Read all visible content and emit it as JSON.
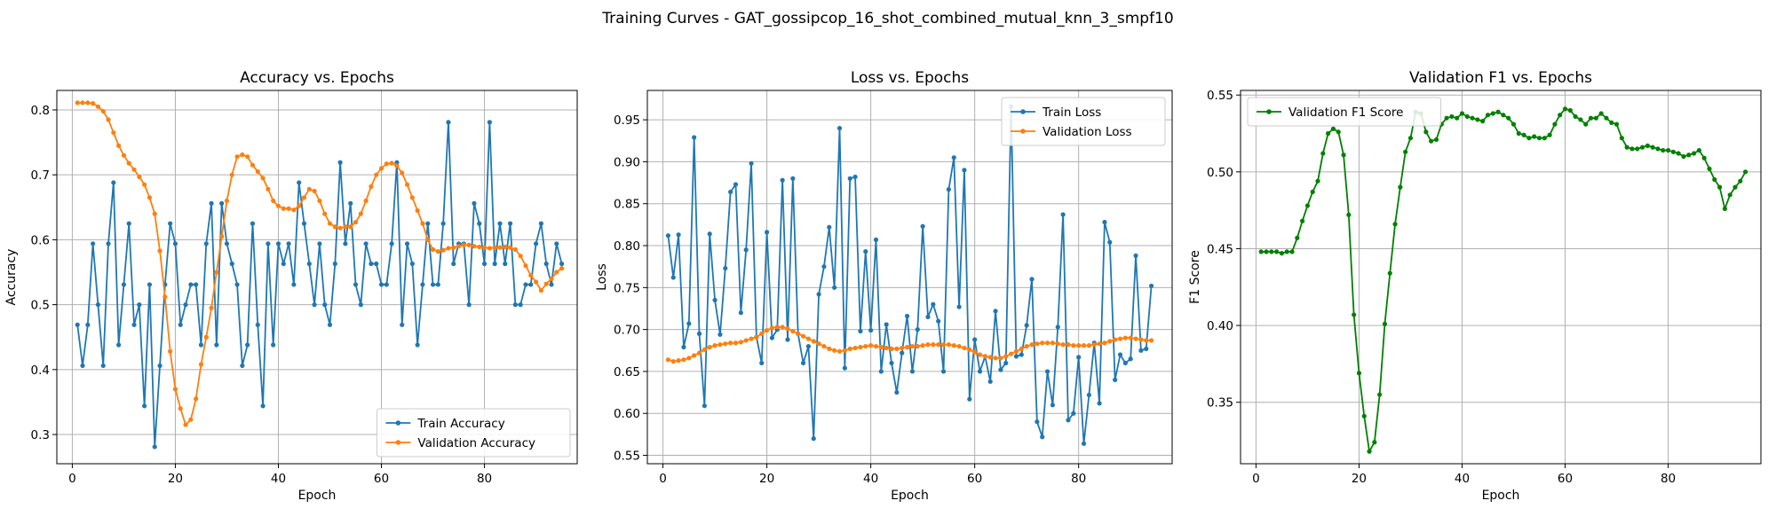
{
  "figure": {
    "title": "Training Curves - GAT_gossipcop_16_shot_combined_mutual_knn_3_smpf10"
  },
  "colors": {
    "train": "#1f77b4",
    "val": "#ff7f0e",
    "f1": "#008000",
    "grid": "#b0b0b0"
  },
  "chart_data": [
    {
      "type": "line",
      "title": "Accuracy vs. Epochs",
      "xlabel": "Epoch",
      "ylabel": "Accuracy",
      "xlim": [
        -3,
        98
      ],
      "ylim": [
        0.255,
        0.83
      ],
      "xticks": [
        0,
        20,
        40,
        60,
        80
      ],
      "yticks": [
        0.3,
        0.4,
        0.5,
        0.6,
        0.7,
        0.8
      ],
      "ytick_decimals": 1,
      "grid": true,
      "legend": "lower-right",
      "series": [
        {
          "name": "Train Accuracy",
          "color": "#1f77b4",
          "values": [
            0.469,
            0.406,
            0.469,
            0.594,
            0.5,
            0.406,
            0.594,
            0.688,
            0.438,
            0.531,
            0.625,
            0.469,
            0.5,
            0.344,
            0.531,
            0.281,
            0.406,
            0.531,
            0.625,
            0.594,
            0.469,
            0.5,
            0.531,
            0.531,
            0.438,
            0.594,
            0.656,
            0.438,
            0.656,
            0.594,
            0.563,
            0.531,
            0.406,
            0.438,
            0.625,
            0.469,
            0.344,
            0.594,
            0.438,
            0.594,
            0.563,
            0.594,
            0.531,
            0.688,
            0.625,
            0.563,
            0.5,
            0.594,
            0.5,
            0.469,
            0.563,
            0.719,
            0.594,
            0.656,
            0.531,
            0.5,
            0.594,
            0.563,
            0.563,
            0.531,
            0.531,
            0.594,
            0.719,
            0.469,
            0.594,
            0.563,
            0.438,
            0.531,
            0.625,
            0.531,
            0.531,
            0.625,
            0.781,
            0.563,
            0.594,
            0.594,
            0.5,
            0.656,
            0.625,
            0.563,
            0.781,
            0.563,
            0.625,
            0.563,
            0.625,
            0.5,
            0.5,
            0.531,
            0.531,
            0.594,
            0.625,
            0.563,
            0.531,
            0.594,
            0.563
          ]
        },
        {
          "name": "Validation Accuracy",
          "color": "#ff7f0e",
          "values": [
            0.811,
            0.811,
            0.811,
            0.81,
            0.805,
            0.798,
            0.785,
            0.765,
            0.745,
            0.73,
            0.718,
            0.708,
            0.697,
            0.685,
            0.665,
            0.64,
            0.583,
            0.512,
            0.428,
            0.37,
            0.34,
            0.315,
            0.323,
            0.355,
            0.408,
            0.45,
            0.495,
            0.55,
            0.605,
            0.66,
            0.7,
            0.728,
            0.731,
            0.728,
            0.715,
            0.705,
            0.695,
            0.678,
            0.66,
            0.652,
            0.648,
            0.648,
            0.646,
            0.652,
            0.665,
            0.678,
            0.675,
            0.66,
            0.64,
            0.625,
            0.62,
            0.618,
            0.62,
            0.62,
            0.627,
            0.64,
            0.66,
            0.682,
            0.7,
            0.71,
            0.717,
            0.718,
            0.714,
            0.703,
            0.685,
            0.665,
            0.645,
            0.625,
            0.6,
            0.585,
            0.582,
            0.584,
            0.587,
            0.588,
            0.59,
            0.592,
            0.592,
            0.59,
            0.589,
            0.588,
            0.587,
            0.588,
            0.588,
            0.589,
            0.588,
            0.585,
            0.575,
            0.56,
            0.545,
            0.535,
            0.522,
            0.532,
            0.54,
            0.55,
            0.556
          ]
        }
      ]
    },
    {
      "type": "line",
      "title": "Loss vs. Epochs",
      "xlabel": "Epoch",
      "ylabel": "Loss",
      "xlim": [
        -3,
        98
      ],
      "ylim": [
        0.54,
        0.985
      ],
      "xticks": [
        0,
        20,
        40,
        60,
        80
      ],
      "yticks": [
        0.55,
        0.6,
        0.65,
        0.7,
        0.75,
        0.8,
        0.85,
        0.9,
        0.95
      ],
      "ytick_decimals": 2,
      "grid": true,
      "legend": "upper-right",
      "series": [
        {
          "name": "Train Loss",
          "color": "#1f77b4",
          "values": [
            0.812,
            0.762,
            0.813,
            0.679,
            0.707,
            0.929,
            0.695,
            0.609,
            0.814,
            0.735,
            0.694,
            0.773,
            0.864,
            0.873,
            0.72,
            0.795,
            0.898,
            0.691,
            0.66,
            0.816,
            0.69,
            0.7,
            0.878,
            0.688,
            0.88,
            0.695,
            0.66,
            0.68,
            0.57,
            0.742,
            0.775,
            0.822,
            0.75,
            0.94,
            0.654,
            0.88,
            0.882,
            0.698,
            0.793,
            0.699,
            0.807,
            0.65,
            0.706,
            0.66,
            0.625,
            0.672,
            0.716,
            0.65,
            0.7,
            0.823,
            0.715,
            0.73,
            0.71,
            0.65,
            0.867,
            0.905,
            0.727,
            0.89,
            0.617,
            0.688,
            0.65,
            0.668,
            0.638,
            0.722,
            0.652,
            0.66,
            0.966,
            0.668,
            0.67,
            0.705,
            0.76,
            0.59,
            0.572,
            0.65,
            0.61,
            0.703,
            0.837,
            0.592,
            0.6,
            0.667,
            0.564,
            0.622,
            0.684,
            0.612,
            0.828,
            0.804,
            0.64,
            0.67,
            0.66,
            0.665,
            0.788,
            0.675,
            0.677,
            0.752
          ]
        },
        {
          "name": "Validation Loss",
          "color": "#ff7f0e",
          "values": [
            0.664,
            0.662,
            0.663,
            0.664,
            0.666,
            0.669,
            0.672,
            0.676,
            0.679,
            0.681,
            0.682,
            0.683,
            0.684,
            0.684,
            0.685,
            0.687,
            0.689,
            0.691,
            0.695,
            0.699,
            0.702,
            0.703,
            0.703,
            0.701,
            0.698,
            0.695,
            0.692,
            0.689,
            0.686,
            0.683,
            0.68,
            0.677,
            0.675,
            0.674,
            0.675,
            0.677,
            0.678,
            0.679,
            0.68,
            0.681,
            0.68,
            0.679,
            0.678,
            0.677,
            0.677,
            0.678,
            0.679,
            0.68,
            0.68,
            0.681,
            0.682,
            0.682,
            0.682,
            0.682,
            0.682,
            0.681,
            0.68,
            0.678,
            0.676,
            0.673,
            0.67,
            0.668,
            0.667,
            0.666,
            0.666,
            0.668,
            0.671,
            0.674,
            0.677,
            0.68,
            0.682,
            0.683,
            0.684,
            0.684,
            0.684,
            0.683,
            0.682,
            0.682,
            0.681,
            0.681,
            0.681,
            0.681,
            0.682,
            0.683,
            0.684,
            0.686,
            0.688,
            0.689,
            0.69,
            0.69,
            0.689,
            0.688,
            0.687,
            0.687
          ]
        }
      ]
    },
    {
      "type": "line",
      "title": "Validation F1 vs. Epochs",
      "xlabel": "Epoch",
      "ylabel": "F1 Score",
      "xlim": [
        -3,
        98
      ],
      "ylim": [
        0.31,
        0.553
      ],
      "xticks": [
        0,
        20,
        40,
        60,
        80
      ],
      "yticks": [
        0.35,
        0.4,
        0.45,
        0.5,
        0.55
      ],
      "ytick_decimals": 2,
      "grid": true,
      "legend": "upper-left",
      "series": [
        {
          "name": "Validation F1 Score",
          "color": "#008000",
          "values": [
            0.448,
            0.448,
            0.448,
            0.448,
            0.447,
            0.448,
            0.448,
            0.457,
            0.468,
            0.478,
            0.487,
            0.494,
            0.512,
            0.525,
            0.528,
            0.526,
            0.511,
            0.472,
            0.407,
            0.369,
            0.341,
            0.318,
            0.324,
            0.355,
            0.401,
            0.434,
            0.466,
            0.49,
            0.513,
            0.522,
            0.539,
            0.538,
            0.526,
            0.52,
            0.521,
            0.531,
            0.535,
            0.536,
            0.535,
            0.538,
            0.536,
            0.535,
            0.534,
            0.533,
            0.537,
            0.538,
            0.539,
            0.537,
            0.535,
            0.531,
            0.525,
            0.524,
            0.522,
            0.523,
            0.522,
            0.522,
            0.524,
            0.531,
            0.537,
            0.541,
            0.54,
            0.536,
            0.534,
            0.531,
            0.535,
            0.535,
            0.538,
            0.535,
            0.532,
            0.531,
            0.522,
            0.516,
            0.515,
            0.515,
            0.516,
            0.517,
            0.516,
            0.515,
            0.514,
            0.514,
            0.513,
            0.512,
            0.51,
            0.511,
            0.512,
            0.514,
            0.509,
            0.502,
            0.495,
            0.49,
            0.476,
            0.485,
            0.49,
            0.494,
            0.5
          ]
        }
      ]
    }
  ]
}
